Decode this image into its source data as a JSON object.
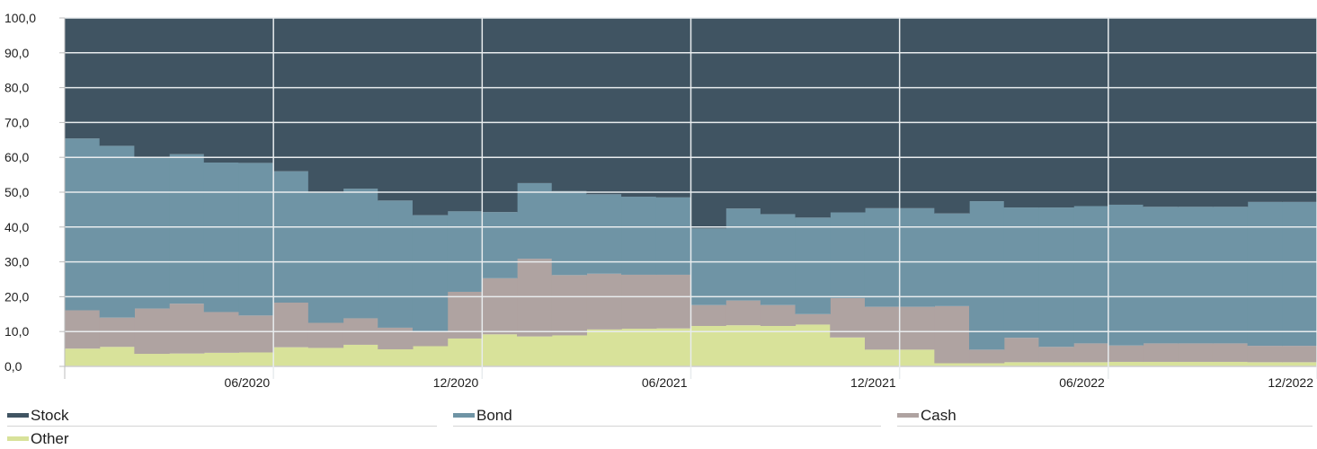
{
  "chart_data": {
    "type": "area",
    "stacked": true,
    "step": true,
    "x": [
      "01/2020",
      "02/2020",
      "03/2020",
      "04/2020",
      "05/2020",
      "06/2020",
      "07/2020",
      "08/2020",
      "09/2020",
      "10/2020",
      "11/2020",
      "12/2020",
      "01/2021",
      "02/2021",
      "03/2021",
      "04/2021",
      "05/2021",
      "06/2021",
      "07/2021",
      "08/2021",
      "09/2021",
      "10/2021",
      "11/2021",
      "12/2021",
      "01/2022",
      "02/2022",
      "03/2022",
      "04/2022",
      "05/2022",
      "06/2022",
      "07/2022",
      "08/2022",
      "09/2022",
      "10/2022",
      "11/2022",
      "12/2022"
    ],
    "x_tick_labels": [
      "06/2020",
      "12/2020",
      "06/2021",
      "12/2021",
      "06/2022",
      "12/2022"
    ],
    "series": [
      {
        "name": "Other",
        "color": "#d8e29a",
        "values": [
          5.1,
          5.6,
          3.6,
          3.7,
          3.9,
          4.0,
          5.5,
          5.3,
          6.2,
          4.9,
          5.8,
          8.0,
          9.2,
          8.6,
          8.9,
          10.6,
          10.8,
          10.9,
          11.6,
          11.8,
          11.6,
          12.0,
          8.3,
          4.8,
          4.8,
          0.9,
          0.9,
          1.2,
          1.2,
          1.2,
          1.3,
          1.3,
          1.3,
          1.3,
          1.2,
          1.2
        ]
      },
      {
        "name": "Cash",
        "color": "#afa3a1",
        "values": [
          11.0,
          8.4,
          13.0,
          14.3,
          11.7,
          10.6,
          12.8,
          7.2,
          7.6,
          6.2,
          4.1,
          13.4,
          16.1,
          22.3,
          17.3,
          16.0,
          15.5,
          15.4,
          6.0,
          7.1,
          6.0,
          3.0,
          11.3,
          12.3,
          12.3,
          16.4,
          3.9,
          7.0,
          4.4,
          5.4,
          4.7,
          5.3,
          5.3,
          5.3,
          4.7,
          4.7
        ]
      },
      {
        "name": "Bond",
        "color": "#6f94a5",
        "values": [
          49.3,
          49.3,
          43.5,
          42.9,
          42.9,
          43.8,
          37.7,
          37.3,
          37.2,
          36.5,
          33.5,
          23.1,
          19.0,
          21.7,
          24.1,
          22.8,
          22.4,
          22.2,
          22.0,
          26.4,
          26.1,
          27.7,
          24.6,
          28.3,
          28.3,
          26.6,
          42.6,
          37.4,
          40.0,
          39.4,
          40.4,
          39.2,
          39.2,
          39.2,
          41.3,
          41.3
        ]
      },
      {
        "name": "Stock",
        "color": "#405462",
        "values": [
          34.6,
          36.7,
          39.9,
          39.1,
          41.5,
          41.6,
          44.0,
          50.2,
          49.0,
          52.4,
          56.6,
          55.5,
          55.7,
          47.4,
          49.7,
          50.6,
          51.3,
          51.5,
          60.4,
          54.7,
          56.3,
          57.3,
          55.8,
          54.6,
          54.6,
          56.1,
          52.6,
          54.4,
          54.4,
          54.0,
          53.6,
          54.2,
          54.2,
          54.2,
          52.8,
          52.8
        ]
      }
    ],
    "ylim": [
      0,
      100
    ],
    "y_ticks": [
      0,
      10,
      20,
      30,
      40,
      50,
      60,
      70,
      80,
      90,
      100
    ],
    "y_tick_labels": [
      "0,0",
      "10,0",
      "20,0",
      "30,0",
      "40,0",
      "50,0",
      "60,0",
      "70,0",
      "80,0",
      "90,0",
      "100,0"
    ],
    "grid": true,
    "legend_position": "bottom"
  },
  "legend": [
    {
      "label": "Stock",
      "color": "#405462"
    },
    {
      "label": "Bond",
      "color": "#6f94a5"
    },
    {
      "label": "Cash",
      "color": "#afa3a1"
    },
    {
      "label": "Other",
      "color": "#d8e29a"
    }
  ]
}
